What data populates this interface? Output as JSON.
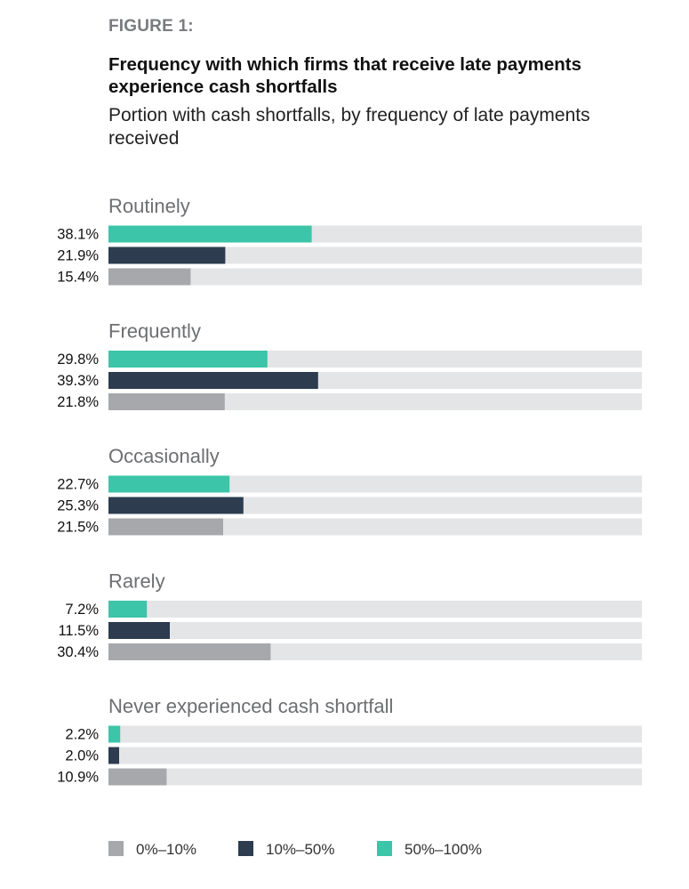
{
  "figure_label": "FIGURE 1:",
  "title": "Frequency with which firms that receive late payments experience cash shortfalls",
  "subtitle": "Portion with cash shortfalls, by frequency of late payments received",
  "colors": {
    "track": "#e4e5e7",
    "0%–10%": "#a7a8ab",
    "10%–50%": "#2d3c4f",
    "50%–100%": "#3cc5a8"
  },
  "chart_data": {
    "type": "bar",
    "orientation": "horizontal",
    "title": "Frequency with which firms that receive late payments experience cash shortfalls",
    "subtitle": "Portion with cash shortfalls, by frequency of late payments received",
    "xlabel": "",
    "ylabel": "",
    "xlim": [
      0,
      100
    ],
    "unit": "%",
    "grid": false,
    "legend_position": "bottom",
    "categories": [
      "Routinely",
      "Frequently",
      "Occasionally",
      "Rarely",
      "Never experienced cash shortfall"
    ],
    "series": [
      {
        "name": "50%–100%",
        "values": [
          38.1,
          29.8,
          22.7,
          7.2,
          2.2
        ],
        "labels": [
          "38.1%",
          "29.8%",
          "22.7%",
          "7.2%",
          "2.2%"
        ]
      },
      {
        "name": "10%–50%",
        "values": [
          21.9,
          39.3,
          25.3,
          11.5,
          2.0
        ],
        "labels": [
          "21.9%",
          "39.3%",
          "25.3%",
          "11.5%",
          "2.0%"
        ]
      },
      {
        "name": "0%–10%",
        "values": [
          15.4,
          21.8,
          21.5,
          30.4,
          10.9
        ],
        "labels": [
          "15.4%",
          "21.8%",
          "21.5%",
          "30.4%",
          "10.9%"
        ]
      }
    ],
    "legend": [
      "0%–10%",
      "10%–50%",
      "50%–100%"
    ]
  }
}
